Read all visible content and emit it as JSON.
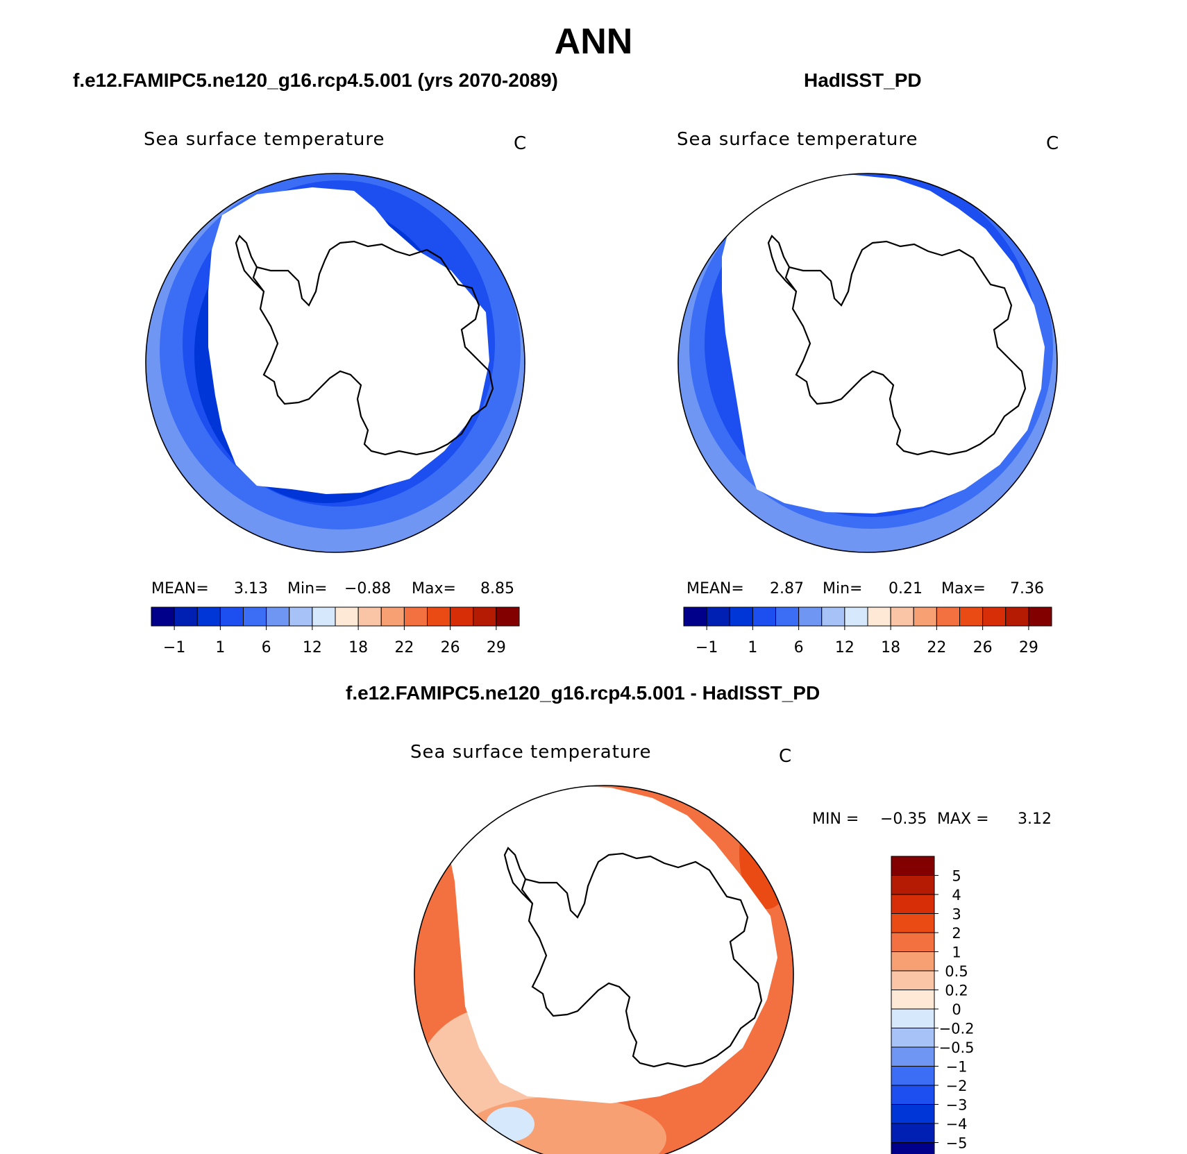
{
  "title": "ANN",
  "colors": {
    "land": "#ffffff",
    "coast": "#000000",
    "sst_scale": [
      "#00008b",
      "#0020b4",
      "#0035d8",
      "#1c4ef0",
      "#3b6ef5",
      "#6f96f2",
      "#a6c2f7",
      "#d6e8fb",
      "#fde9d6",
      "#f9c5a6",
      "#f6a074",
      "#f37040",
      "#ea4a14",
      "#d82e08",
      "#b51a02",
      "#820000"
    ],
    "diff_scale": [
      "#00008b",
      "#0020b4",
      "#0035d8",
      "#1c4ef0",
      "#3b6ef5",
      "#6f96f2",
      "#a6c2f7",
      "#d6e8fb",
      "#fde9d6",
      "#f9c5a6",
      "#f6a074",
      "#f37040",
      "#ea4a14",
      "#d82e08",
      "#b51a02",
      "#820000"
    ]
  },
  "panels": [
    {
      "header": "f.e12.FAMIPC5.ne120_g16.rcp4.5.001 (yrs 2070-2089)",
      "map_title": "Sea surface temperature",
      "units": "C",
      "mean_label": "MEAN=",
      "mean": "3.13",
      "min_label": "Min=",
      "min": "−0.88",
      "max_label": "Max=",
      "max": "8.85",
      "colorbar_labels": [
        "−1",
        "1",
        "6",
        "12",
        "18",
        "22",
        "26",
        "29"
      ]
    },
    {
      "header": "HadISST_PD",
      "map_title": "Sea surface temperature",
      "units": "C",
      "mean_label": "MEAN=",
      "mean": "2.87",
      "min_label": "Min=",
      "min": "0.21",
      "max_label": "Max=",
      "max": "7.36",
      "colorbar_labels": [
        "−1",
        "1",
        "6",
        "12",
        "18",
        "22",
        "26",
        "29"
      ]
    }
  ],
  "diff_panel": {
    "header": "f.e12.FAMIPC5.ne120_g16.rcp4.5.001 - HadISST_PD",
    "map_title": "Sea surface temperature",
    "units": "C",
    "min_label": "MIN =",
    "min": "−0.35",
    "max_label": "MAX =",
    "max": "3.12",
    "colorbar_labels": [
      "5",
      "4",
      "3",
      "2",
      "1",
      "0.5",
      "0.2",
      "0",
      "−0.2",
      "−0.5",
      "−1",
      "−2",
      "−3",
      "−4",
      "−5"
    ]
  }
}
